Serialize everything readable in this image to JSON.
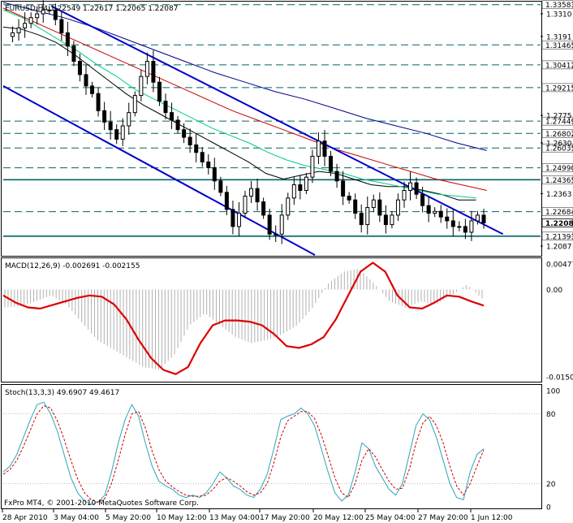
{
  "window": {
    "symbol_header": "EURUSD,H4  1.22549 1.22617 1.22065 1.22087",
    "copyright": "FxPro MT4, © 2001-2010 MetaQuotes Software Corp."
  },
  "colors": {
    "background": "#ffffff",
    "candle": "#000000",
    "channel_blue": "#0000cc",
    "level_line": "#006666",
    "ma_red": "#cc0000",
    "ma_green": "#00cc88",
    "ma_black": "#000000",
    "ma_navy": "#000088",
    "macd_signal": "#dd0000",
    "macd_hist": "#b0b0b0",
    "stoch_main": "#2aa6b8",
    "stoch_signal": "#cc0000",
    "price_label_bg": "#ffffff"
  },
  "chart_data": [
    {
      "type": "candlestick",
      "title": "EURUSD,H4",
      "ohlc_readout": {
        "open": 1.22549,
        "high": 1.22617,
        "low": 1.22065,
        "close": 1.22087
      },
      "ylim": [
        1.204,
        1.337
      ],
      "y_ticks": [
        1.331,
        1.3191,
        1.2775,
        1.263,
        1.2363,
        1.2087
      ],
      "horizontal_levels": [
        1.33583,
        1.31465,
        1.30412,
        1.29215,
        1.27449,
        1.26802,
        1.26035,
        1.2499,
        1.24365,
        1.22684,
        1.21393
      ],
      "level_labels": [
        "1.33583",
        "1.31465",
        "1.30412",
        "1.29215",
        "1.27449",
        "1.26802",
        "1.26035",
        "1.24990",
        "1.24365",
        "1.22684",
        "1.21393"
      ],
      "tick_labels": [
        "1.3310",
        "1.3191",
        "1.2775",
        "1.2630",
        "1.2363",
        "1.2087"
      ],
      "current_price_label": "1.22087",
      "x_labels": [
        "28 Apr 2010",
        "3 May 04:00",
        "5 May 20:00",
        "10 May 12:00",
        "13 May 04:00",
        "17 May 20:00",
        "20 May 12:00",
        "25 May 04:00",
        "27 May 20:00",
        "1 Jun 12:00"
      ],
      "close_path": [
        1.3191,
        1.321,
        1.3236,
        1.326,
        1.329,
        1.331,
        1.333,
        1.333,
        1.328,
        1.321,
        1.314,
        1.306,
        1.299,
        1.293,
        1.289,
        1.28,
        1.274,
        1.27,
        1.265,
        1.272,
        1.279,
        1.288,
        1.298,
        1.306,
        1.295,
        1.285,
        1.279,
        1.275,
        1.27,
        1.266,
        1.262,
        1.258,
        1.253,
        1.25,
        1.243,
        1.237,
        1.228,
        1.219,
        1.226,
        1.235,
        1.239,
        1.232,
        1.225,
        1.215,
        1.215,
        1.225,
        1.234,
        1.241,
        1.238,
        1.245,
        1.256,
        1.264,
        1.256,
        1.248,
        1.243,
        1.235,
        1.233,
        1.226,
        1.22,
        1.229,
        1.233,
        1.225,
        1.22,
        1.225,
        1.233,
        1.238,
        1.242,
        1.236,
        1.23,
        1.226,
        1.227,
        1.224,
        1.222,
        1.219,
        1.219,
        1.216,
        1.222,
        1.225,
        1.2209
      ],
      "channel_upper": [
        [
          0.09,
          1.335
        ],
        [
          0.93,
          1.215
        ]
      ],
      "channel_lower": [
        [
          0.0,
          1.293
        ],
        [
          0.58,
          1.204
        ]
      ],
      "ma_lines": [
        {
          "color": "#000000",
          "values": [
            1.324,
            1.323,
            1.32,
            1.316,
            1.31,
            1.303,
            1.296,
            1.289,
            1.283,
            1.278,
            1.273,
            1.268,
            1.263,
            1.258,
            1.253,
            1.247,
            1.244,
            1.246,
            1.248,
            1.247,
            1.244,
            1.241,
            1.24,
            1.24,
            1.238,
            1.236,
            1.233,
            1.233
          ]
        },
        {
          "color": "#00cc88",
          "values": [
            1.333,
            1.329,
            1.323,
            1.317,
            1.311,
            1.304,
            1.298,
            1.291,
            1.286,
            1.281,
            1.276,
            1.271,
            1.267,
            1.263,
            1.258,
            1.254,
            1.251,
            1.249,
            1.247,
            1.244,
            1.242,
            1.24,
            1.238,
            1.236,
            1.235,
            1.234
          ]
        },
        {
          "color": "#cc0000",
          "values": [
            1.334,
            1.328,
            1.322,
            1.316,
            1.31,
            1.304,
            1.298,
            1.292,
            1.286,
            1.28,
            1.275,
            1.27,
            1.265,
            1.26,
            1.256,
            1.252,
            1.248,
            1.244,
            1.241,
            1.238
          ]
        },
        {
          "color": "#000088",
          "values": [
            1.337,
            1.333,
            1.329,
            1.324,
            1.318,
            1.312,
            1.306,
            1.3,
            1.295,
            1.29,
            1.286,
            1.281,
            1.276,
            1.272,
            1.268,
            1.263,
            1.259
          ]
        }
      ]
    },
    {
      "type": "line",
      "title": "MACD(12,26,9) -0.002691 -0.002155",
      "ylim": [
        -0.0152,
        0.0047
      ],
      "tick_labels": [
        "0.004770",
        "0.00",
        "-0.015027"
      ],
      "signal": [
        -0.001,
        -0.0022,
        -0.003,
        -0.0032,
        -0.0026,
        -0.002,
        -0.0014,
        -0.001,
        -0.0012,
        -0.0025,
        -0.005,
        -0.0085,
        -0.0115,
        -0.0135,
        -0.0142,
        -0.013,
        -0.009,
        -0.006,
        -0.0052,
        -0.0052,
        -0.0054,
        -0.006,
        -0.0075,
        -0.0095,
        -0.0098,
        -0.0092,
        -0.008,
        -0.005,
        -0.001,
        0.003,
        0.0045,
        0.003,
        -0.001,
        -0.003,
        -0.0032,
        -0.0022,
        -0.001,
        -0.0012,
        -0.002,
        -0.0027
      ],
      "histogram": [
        -0.003,
        -0.0028,
        -0.002,
        -0.001,
        -0.0025,
        -0.0055,
        -0.0085,
        -0.01,
        -0.0115,
        -0.013,
        -0.0135,
        -0.011,
        -0.006,
        -0.004,
        -0.006,
        -0.008,
        -0.009,
        -0.0085,
        -0.0075,
        -0.006,
        -0.003,
        0.001,
        0.003,
        0.0035,
        0.001,
        -0.002,
        -0.003,
        -0.002,
        -0.0025,
        -0.001,
        0.0008,
        -0.0015
      ]
    },
    {
      "type": "line",
      "title": "Stoch(13,3,3) 49.6907 49.4617",
      "ylim": [
        0,
        100
      ],
      "tick_labels": [
        "100",
        "80",
        "20",
        "0"
      ],
      "main": [
        30,
        35,
        45,
        60,
        75,
        88,
        90,
        80,
        65,
        45,
        25,
        12,
        5,
        2,
        4,
        10,
        30,
        55,
        75,
        88,
        78,
        55,
        35,
        22,
        18,
        15,
        10,
        8,
        10,
        8,
        12,
        20,
        30,
        25,
        18,
        15,
        10,
        8,
        15,
        28,
        50,
        75,
        78,
        80,
        85,
        80,
        70,
        50,
        30,
        12,
        5,
        10,
        30,
        55,
        50,
        35,
        25,
        15,
        10,
        20,
        45,
        70,
        80,
        75,
        60,
        40,
        20,
        8,
        6,
        30,
        45,
        50
      ],
      "signal": [
        28,
        32,
        40,
        52,
        66,
        80,
        87,
        85,
        74,
        58,
        40,
        24,
        12,
        6,
        4,
        7,
        20,
        40,
        62,
        80,
        82,
        68,
        48,
        32,
        22,
        17,
        13,
        10,
        9,
        9,
        10,
        15,
        22,
        25,
        22,
        18,
        13,
        10,
        12,
        20,
        38,
        60,
        74,
        78,
        82,
        82,
        76,
        62,
        44,
        25,
        12,
        8,
        20,
        40,
        50,
        43,
        32,
        22,
        15,
        16,
        32,
        55,
        72,
        78,
        70,
        55,
        35,
        18,
        10,
        20,
        35,
        49
      ]
    }
  ]
}
